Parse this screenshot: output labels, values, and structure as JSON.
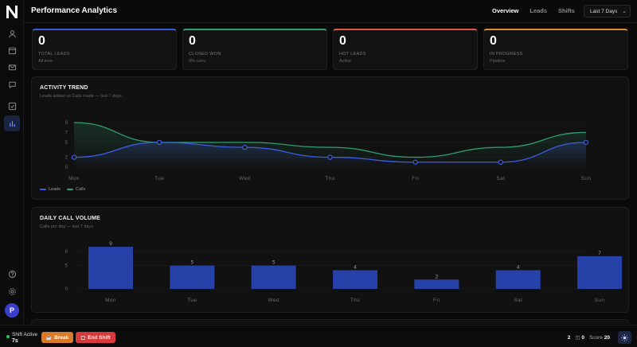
{
  "app": {
    "logo_letter": "N",
    "page_title": "Performance Analytics"
  },
  "header": {
    "tabs": [
      {
        "label": "Overview",
        "active": true
      },
      {
        "label": "Leads",
        "active": false
      },
      {
        "label": "Shifts",
        "active": false
      }
    ],
    "range_select": "Last 7 Days"
  },
  "sidebar": {
    "items": [
      {
        "icon": "user-icon"
      },
      {
        "icon": "calendar-icon"
      },
      {
        "icon": "mail-icon"
      },
      {
        "icon": "chat-icon"
      },
      {
        "icon": "checklist-icon"
      },
      {
        "icon": "bar-chart-icon",
        "active": true
      }
    ],
    "bottom": [
      {
        "icon": "help-icon"
      },
      {
        "icon": "settings-icon"
      }
    ],
    "avatar_letter": "P"
  },
  "stats": [
    {
      "value": "0",
      "label": "TOTAL LEADS",
      "sub": "All time",
      "color": "#3b5bdb"
    },
    {
      "value": "0",
      "label": "CLOSED WON",
      "sub": "0% conv.",
      "color": "#2f9e6e"
    },
    {
      "value": "0",
      "label": "HOT LEADS",
      "sub": "Active",
      "color": "#e0554b"
    },
    {
      "value": "0",
      "label": "IN PROGRESS",
      "sub": "Pipeline",
      "color": "#e08a2b"
    }
  ],
  "activity": {
    "title": "ACTIVITY TREND",
    "subtitle": "Leads added vs Calls made — last 7 days",
    "legend": [
      "Leads",
      "Calls"
    ]
  },
  "daily": {
    "title": "DAILY CALL VOLUME",
    "subtitle": "Calls per day — last 7 days"
  },
  "chart_data": [
    {
      "type": "line",
      "categories": [
        "Mon",
        "Tue",
        "Wed",
        "Thu",
        "Fri",
        "Sat",
        "Sun"
      ],
      "yticks": [
        0,
        2,
        5,
        7,
        9
      ],
      "ylim": [
        0,
        9
      ],
      "series": [
        {
          "name": "Leads",
          "values": [
            2,
            5,
            4,
            2,
            1,
            1,
            5
          ],
          "color": "#3d5ee8"
        },
        {
          "name": "Calls",
          "values": [
            9,
            5,
            5,
            4,
            2,
            4,
            7
          ],
          "color": "#2f9e6e"
        }
      ],
      "legend": "bottom-left",
      "grid": true
    },
    {
      "type": "bar",
      "categories": [
        "Mon",
        "Tue",
        "Wed",
        "Thu",
        "Fri",
        "Sat",
        "Sun"
      ],
      "values": [
        9,
        5,
        5,
        4,
        2,
        4,
        7
      ],
      "yticks": [
        0,
        5,
        8
      ],
      "ylim": [
        0,
        9
      ],
      "color": "#2641a8",
      "grid": true
    }
  ],
  "footer": {
    "shift_label": "Shift Active",
    "shift_time": "7s",
    "break_label": "Break",
    "end_label": "End Shift",
    "count_a": "2",
    "count_b": "0",
    "score_label": "Score",
    "score_value": "20"
  }
}
